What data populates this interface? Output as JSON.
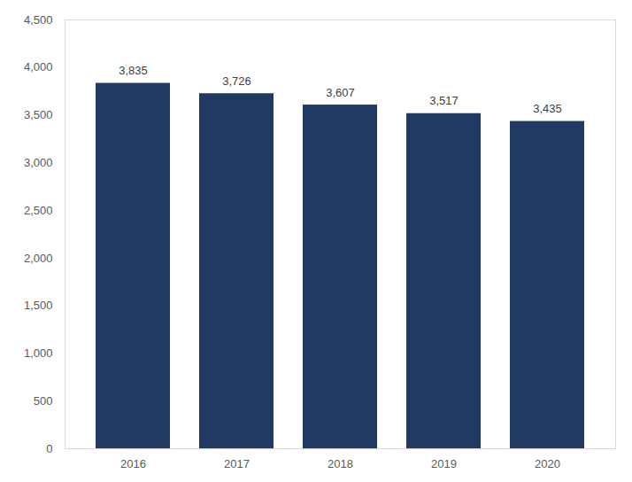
{
  "chart_data": {
    "type": "bar",
    "categories": [
      "2016",
      "2017",
      "2018",
      "2019",
      "2020"
    ],
    "values": [
      3835,
      3726,
      3607,
      3517,
      3435
    ],
    "value_labels": [
      "3,835",
      "3,726",
      "3,607",
      "3,517",
      "3,435"
    ],
    "data_labels": true,
    "color": "#213a63",
    "ylim": [
      0,
      4500
    ],
    "yticks": [
      0,
      500,
      {
        "value": 1000,
        "label": "1,000"
      },
      {
        "value": 1500,
        "label": "1,500"
      },
      {
        "value": 2000,
        "label": "2,000"
      },
      {
        "value": 2500,
        "label": "2,500"
      },
      {
        "value": 3000,
        "label": "3,000"
      },
      {
        "value": 3500,
        "label": "3,500"
      },
      {
        "value": 4000,
        "label": "4,000"
      },
      {
        "value": 4500,
        "label": "4,500"
      }
    ],
    "grid": false
  }
}
